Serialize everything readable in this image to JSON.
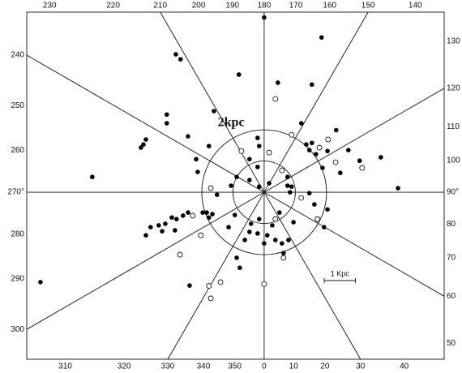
{
  "chart_data": {
    "type": "scatter",
    "xlim": [
      -7.61,
      5.77
    ],
    "ylim": [
      -5.35,
      5.77
    ],
    "rays": [
      0,
      30,
      60,
      90,
      120,
      150,
      180,
      210,
      240,
      270,
      300,
      330
    ],
    "circles": [
      1,
      2
    ],
    "circle_label": "2kpc",
    "scale_bar": {
      "label": "1 Kpc",
      "length": 1
    },
    "frame_labels": [
      230,
      220,
      210,
      200,
      190,
      180,
      170,
      160,
      150,
      140,
      130,
      120,
      110,
      100,
      {
        "value": 90,
        "label": "90°"
      },
      80,
      70,
      60,
      50,
      40,
      30,
      20,
      10,
      0,
      350,
      340,
      330,
      320,
      310,
      300,
      290,
      280,
      {
        "value": 270,
        "label": "270°"
      },
      260,
      250,
      240
    ],
    "series": [
      {
        "color": "#000000",
        "marker": "filled",
        "x": [
          0.0,
          1.84,
          -2.83,
          -2.68,
          -0.81,
          0.44,
          1.53,
          -3.12,
          -3.12,
          -3.79,
          -3.87,
          -3.95,
          -2.44,
          -1.77,
          -2.18,
          -2.13,
          -5.51,
          -0.47,
          -0.21,
          -0.21,
          -0.16,
          1.35,
          1.45,
          1.66,
          1.53,
          2.03,
          2.31,
          2.7,
          3.06,
          3.74,
          4.29,
          2.44,
          1.87,
          0.75,
          0.88,
          0.83,
          0.16,
          -0.16,
          -0.47,
          -0.88,
          -1.06,
          -1.51,
          -2.44,
          -2.6,
          -1.84,
          -1.77,
          -1.66,
          -1.97,
          -2.81,
          -2.96,
          -3.17,
          -3.38,
          -3.64,
          -3.79,
          -3.27,
          -2.86,
          -0.94,
          -1.14,
          -0.88,
          -0.78,
          -2.39,
          -7.17,
          -0.62,
          -0.47,
          -0.21,
          0.1,
          0.26,
          0.36,
          0.57,
          0.78,
          -0.16,
          -0.42,
          0.0,
          0.49,
          1.61,
          1.92,
          1.45,
          0.62,
          0.94,
          2.03,
          0.75,
          1.19,
          -1.61
        ],
        "y": [
          5.6,
          4.96,
          4.42,
          4.26,
          3.77,
          3.51,
          3.45,
          2.49,
          2.21,
          1.69,
          1.53,
          1.43,
          1.79,
          1.48,
          1.06,
          0.65,
          0.49,
          1.06,
          0.81,
          1.74,
          1.48,
          1.53,
          1.35,
          1.22,
          1.58,
          1.32,
          1.99,
          1.35,
          1.01,
          1.12,
          0.13,
          0.62,
          0.78,
          0.21,
          0.18,
          0.0,
          0.29,
          0.18,
          0.39,
          0.49,
          0.21,
          -0.08,
          -0.65,
          -0.75,
          -0.65,
          -0.81,
          -0.7,
          -0.65,
          -0.86,
          -0.81,
          -1.01,
          -1.06,
          -1.12,
          -1.38,
          -1.25,
          -1.22,
          -0.73,
          -1.12,
          -2.1,
          -2.42,
          -2.99,
          -2.88,
          -1.53,
          -1.27,
          -1.32,
          -1.38,
          -1.06,
          -1.53,
          -1.64,
          -1.53,
          -0.86,
          -1.01,
          -1.64,
          -0.65,
          -0.39,
          -1.12,
          -0.03,
          -1.95,
          -0.96,
          -0.55,
          0.49,
          2.21,
          2.6
        ]
      },
      {
        "color": "#000000",
        "marker": "open",
        "x": [
          0.36,
          2.05,
          2.29,
          0.16,
          0.57,
          -0.73,
          -1.71,
          -2.29,
          -2.03,
          -2.7,
          -1.4,
          -1.71,
          -1.77,
          0.0,
          0.36,
          1.71,
          1.19,
          0.62,
          0.88,
          3.14,
          1.77
        ],
        "y": [
          2.99,
          1.69,
          0.96,
          1.27,
          0.7,
          1.32,
          0.13,
          -0.75,
          -1.38,
          -2.0,
          -2.88,
          -3.4,
          -3.0,
          -2.94,
          -0.86,
          -0.86,
          -0.18,
          -2.1,
          1.84,
          0.78,
          1.43
        ]
      }
    ]
  }
}
